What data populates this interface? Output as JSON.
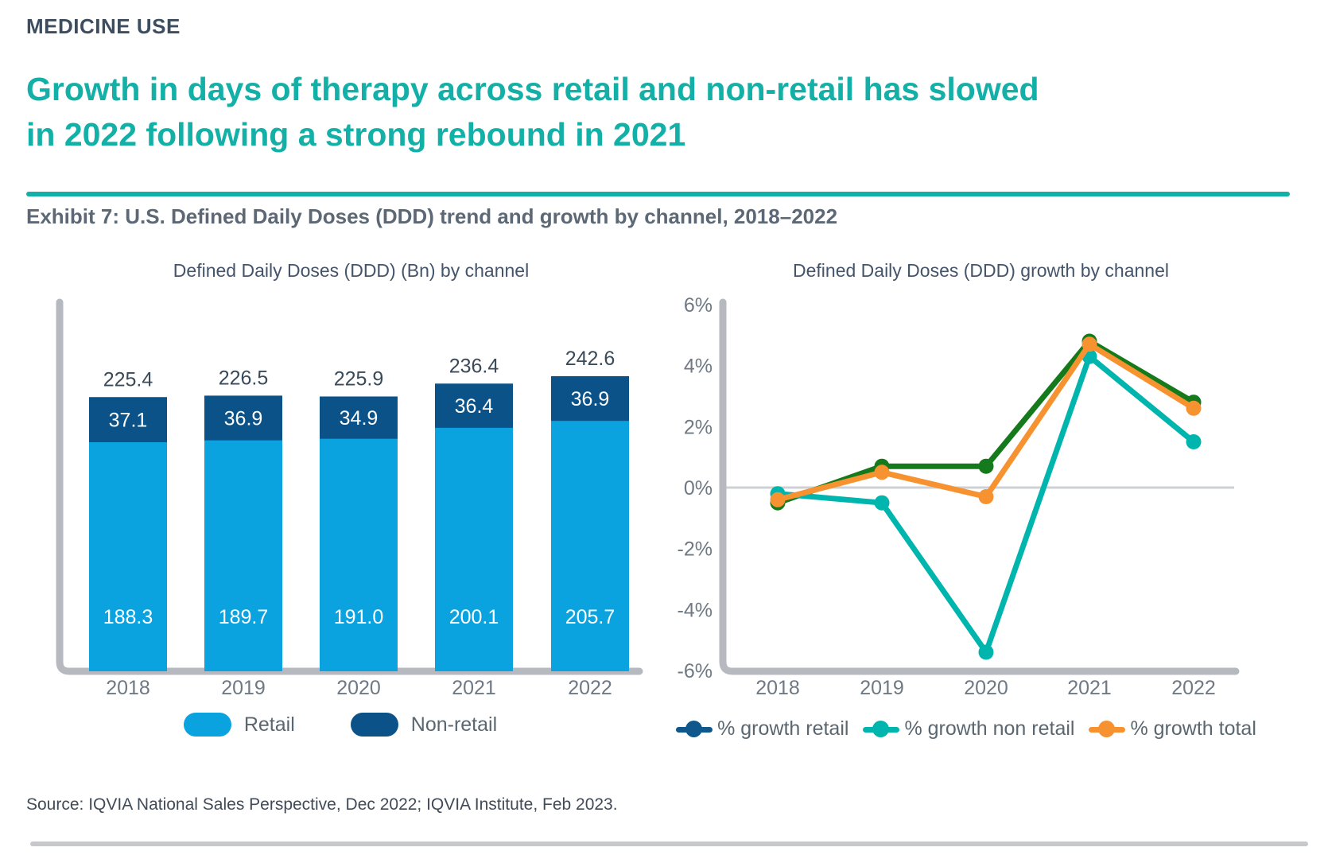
{
  "page": {
    "kicker": "MEDICINE USE",
    "title_line1": "Growth in days of therapy across retail and non-retail has slowed",
    "title_line2": "in 2022 following a strong rebound in 2021",
    "exhibit_caption": "Exhibit 7: U.S. Defined Daily Doses (DDD) trend and growth by channel, 2018–2022",
    "source": "Source: IQVIA National Sales Perspective, Dec 2022; IQVIA Institute, Feb 2023."
  },
  "colors": {
    "teal_accent": "#13B0A7",
    "retail_blue": "#0AA3E0",
    "non_retail_navy": "#0A5287",
    "growth_retail_line_green": "#157A1B",
    "growth_retail_legend_navy": "#10578C",
    "growth_non_retail_teal": "#00B5AD",
    "growth_total_orange": "#F79231",
    "axis_gray": "#B6BAC0",
    "zero_line_gray": "#CDD0D4",
    "value_text_dark": "#3B4A59",
    "label_gray": "#6F7984",
    "legend_text_gray": "#5B6770"
  },
  "chart_data": [
    {
      "type": "bar",
      "title": "Defined Daily Doses (DDD) (Bn) by channel",
      "stacked": true,
      "categories": [
        "2018",
        "2019",
        "2020",
        "2021",
        "2022"
      ],
      "series": [
        {
          "name": "Retail",
          "values": [
            188.3,
            189.7,
            191.0,
            200.1,
            205.7
          ]
        },
        {
          "name": "Non-retail",
          "values": [
            37.1,
            36.9,
            34.9,
            36.4,
            36.9
          ]
        }
      ],
      "totals": [
        225.4,
        226.5,
        225.9,
        236.4,
        242.6
      ],
      "unit": "Bn DDD",
      "legend_position": "bottom"
    },
    {
      "type": "line",
      "title": "Defined Daily Doses (DDD) growth by channel",
      "categories": [
        "2018",
        "2019",
        "2020",
        "2021",
        "2022"
      ],
      "series": [
        {
          "name": "% growth retail",
          "values": [
            -0.5,
            0.7,
            0.7,
            4.8,
            2.8
          ]
        },
        {
          "name": "% growth non retail",
          "values": [
            -0.2,
            -0.5,
            -5.4,
            4.3,
            1.5
          ]
        },
        {
          "name": "% growth total",
          "values": [
            -0.4,
            0.5,
            -0.3,
            4.7,
            2.6
          ]
        }
      ],
      "ylim": [
        -6,
        6
      ],
      "yticks": [
        {
          "label": "6%",
          "value": 6
        },
        {
          "label": "4%",
          "value": 4
        },
        {
          "label": "2%",
          "value": 2
        },
        {
          "label": "0%",
          "value": 0
        },
        {
          "label": "-2%",
          "value": -2
        },
        {
          "label": "-4%",
          "value": -4
        },
        {
          "label": "-6%",
          "value": -6
        }
      ],
      "grid": "zero-line-only",
      "legend_position": "bottom"
    }
  ]
}
